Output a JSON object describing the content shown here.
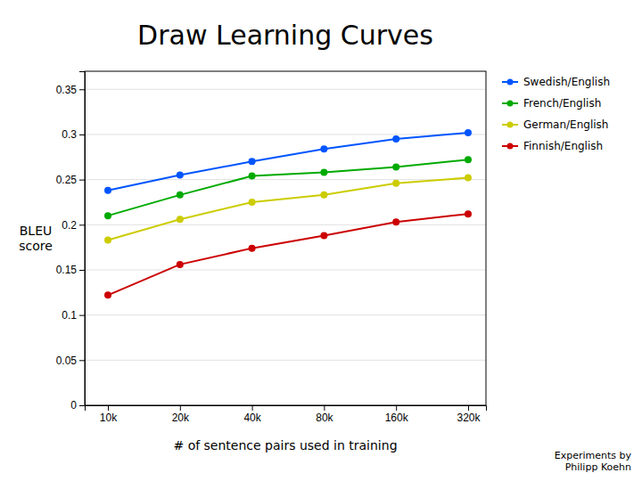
{
  "chart_data": {
    "type": "line",
    "title": "Draw Learning Curves",
    "xlabel": "# of sentence pairs used in training",
    "ylabel": "BLEU\nscore",
    "annotations": [
      "Experiments by\nPhilipp Koehn"
    ],
    "x": [
      10000,
      20000,
      40000,
      80000,
      160000,
      320000
    ],
    "series": [
      {
        "name": "Swedish/English",
        "color": "#0055FF",
        "values": [
          0.238,
          0.255,
          0.27,
          0.284,
          0.295,
          0.302
        ]
      },
      {
        "name": "French/English",
        "color": "#00AA00",
        "values": [
          0.21,
          0.233,
          0.254,
          0.258,
          0.264,
          0.272
        ]
      },
      {
        "name": "German/English",
        "color": "#CCCC00",
        "values": [
          0.183,
          0.206,
          0.225,
          0.233,
          0.246,
          0.252
        ]
      },
      {
        "name": "Finnish/English",
        "color": "#CC0000",
        "values": [
          0.122,
          0.156,
          0.174,
          0.188,
          0.203,
          0.212
        ]
      }
    ],
    "log": "x",
    "xlim": [
      8000,
      380000
    ],
    "xticks": [
      {
        "value": 10000,
        "label": "10k"
      },
      {
        "value": 20000,
        "label": "20k"
      },
      {
        "value": 40000,
        "label": "40k"
      },
      {
        "value": 80000,
        "label": "80k"
      },
      {
        "value": 160000,
        "label": "160k"
      },
      {
        "value": 320000,
        "label": "320k"
      }
    ],
    "ylim": [
      0,
      0.37
    ],
    "yticks": [
      0,
      0.05,
      0.1,
      0.15,
      0.2,
      0.25,
      0.3,
      0.35
    ],
    "grid": true,
    "legend": "right",
    "marker": "circle"
  }
}
